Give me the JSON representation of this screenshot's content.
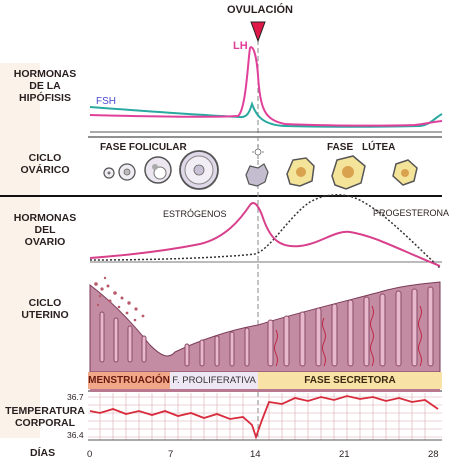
{
  "ovulation_label": "OVULACIÓN",
  "lh_label": "LH",
  "fsh_label": "FSH",
  "rows": {
    "hipofisis": [
      "HORMONAS",
      "DE LA",
      "HIPÓFISIS"
    ],
    "ovarico": [
      "CICLO",
      "OVÁRICO"
    ],
    "ovario": [
      "HORMONAS",
      "DEL",
      "OVARIO"
    ],
    "uterino": [
      "CICLO",
      "UTERINO"
    ],
    "temperatura": [
      "TEMPERATURA",
      "CORPORAL"
    ],
    "dias": "DÍAS"
  },
  "ovarian_phases": {
    "follicular": "FASE FOLICULAR",
    "luteal_word1": "FASE",
    "luteal_word2": "LÚTEA"
  },
  "ovarian_hormones": {
    "estrogen": "ESTRÓGENOS",
    "progesterone": "PROGESTERONA"
  },
  "uterine_phases": {
    "menstruation": "MENSTRUACIÓN",
    "proliferative": "F. PROLIFERATIVA",
    "secretory": "FASE SECRETORA"
  },
  "temperature_ticks": {
    "high": "36.7",
    "low": "36.4"
  },
  "day_ticks": [
    "0",
    "7",
    "14",
    "21",
    "28"
  ],
  "colors": {
    "lh": "#e0409a",
    "fsh": "#2aa9a0",
    "fsh_label": "#4a4ad0",
    "estrogen": "#d8408c",
    "progesterone": "#333333",
    "temperature": "#d82c3c",
    "menstruation_bg": "#f0a888",
    "proliferative_bg": "#ede8f4",
    "secretory_bg": "#f8e2a6",
    "tissue": "#a8607c",
    "gland": "#9c6b8d"
  }
}
